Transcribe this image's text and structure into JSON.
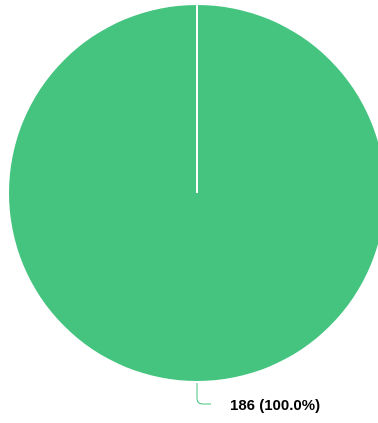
{
  "chart_data": {
    "type": "pie",
    "slices": [
      {
        "value": 186,
        "label": "186 (100.0%)",
        "color": "#44c47f"
      }
    ],
    "start_angle_deg": 0,
    "direction": "clockwise"
  },
  "colors": {
    "slice": "#44c47f",
    "separator": "#ffffff",
    "leader": "#44c47f",
    "label": "#000000",
    "background": "#ffffff"
  }
}
